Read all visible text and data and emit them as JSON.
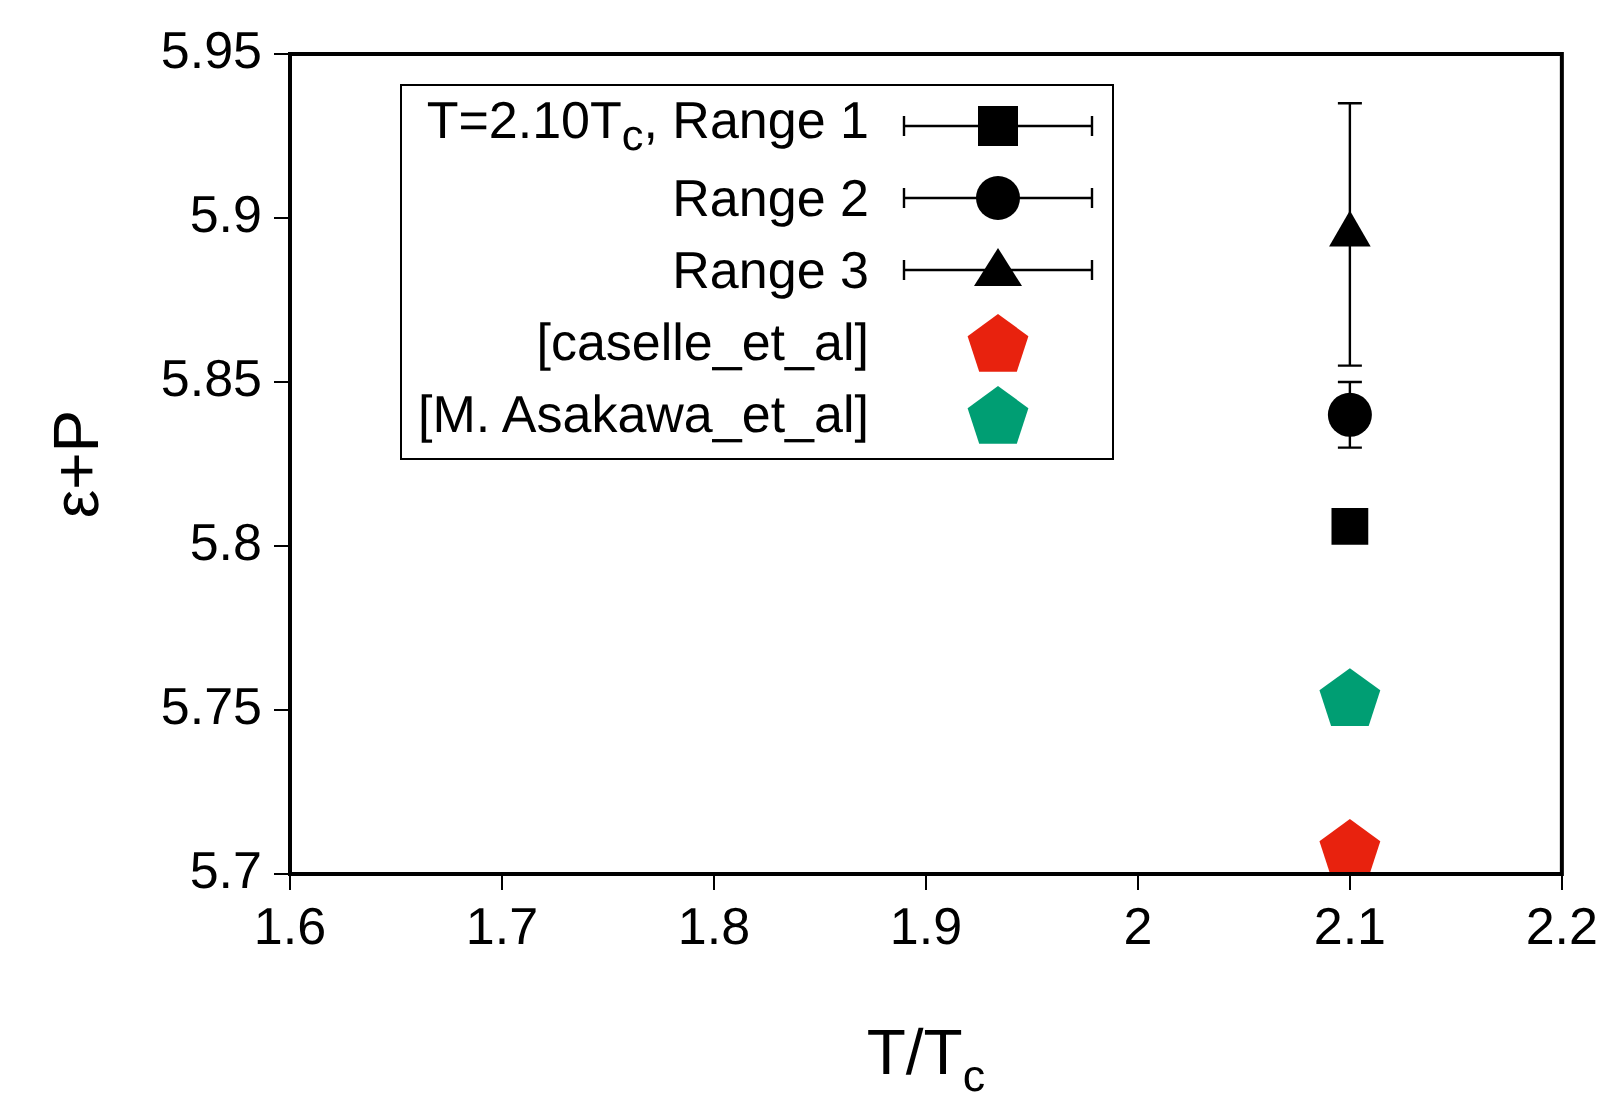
{
  "chart_data": {
    "type": "scatter",
    "xlabel": "T/T$_{c}$",
    "ylabel": "ε+P",
    "x": [
      2.1
    ],
    "xlim": [
      1.6,
      2.2
    ],
    "xticks": [
      1.6,
      1.7,
      1.8,
      1.9,
      2,
      2.1,
      2.2
    ],
    "ylim": [
      5.7,
      5.95
    ],
    "yticks": [
      5.7,
      5.75,
      5.8,
      5.85,
      5.9,
      5.95
    ],
    "grid": false,
    "legend": "top left",
    "series": [
      {
        "name": "T=2.10T$_{c}$, Range 1",
        "color": "#000000",
        "marker": "square",
        "values": [
          5.806
        ],
        "errors": [
          null
        ]
      },
      {
        "name": "Range 2",
        "color": "#000000",
        "marker": "circle",
        "values": [
          5.84
        ],
        "errors": [
          0.01
        ]
      },
      {
        "name": "Range 3",
        "color": "#000000",
        "marker": "triangle",
        "values": [
          5.895
        ],
        "errors": [
          0.04
        ]
      },
      {
        "name": "[caselle_et_al]",
        "color": "#e8220e",
        "values": [
          5.707
        ]
      },
      {
        "name": "[M. Asakawa_et_al]",
        "color": "#009e73",
        "values": [
          5.753
        ]
      }
    ]
  }
}
